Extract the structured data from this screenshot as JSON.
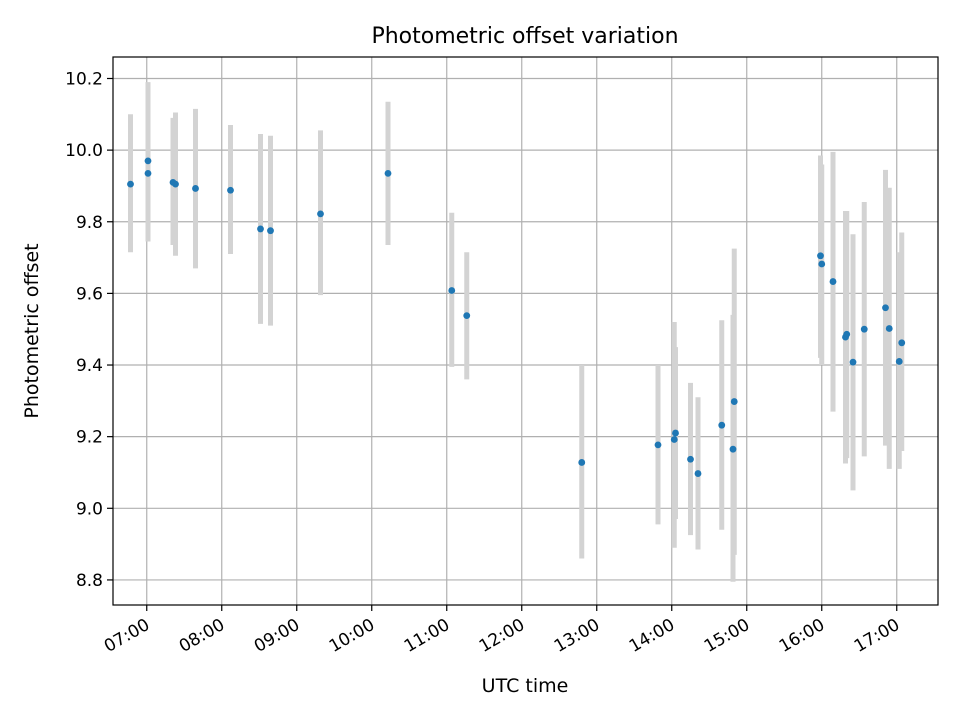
{
  "colors": {
    "point": "#1f77b4",
    "errorbar": "#d3d3d3",
    "grid": "#b0b0b0",
    "axes": "#000000",
    "background": "#ffffff"
  },
  "chart_data": {
    "type": "scatter",
    "title": "Photometric offset variation",
    "xlabel": "UTC time",
    "ylabel": "Photometric offset",
    "xlim": [
      "06:33",
      "17:33"
    ],
    "ylim": [
      8.73,
      10.26
    ],
    "grid": true,
    "x_ticks": [
      "07:00",
      "08:00",
      "09:00",
      "10:00",
      "11:00",
      "12:00",
      "13:00",
      "14:00",
      "15:00",
      "16:00",
      "17:00"
    ],
    "y_ticks": [
      "8.8",
      "9.0",
      "9.2",
      "9.4",
      "9.6",
      "9.8",
      "10.0",
      "10.2"
    ],
    "series": [
      {
        "points": [
          {
            "x": "06:47",
            "y": 9.905,
            "err_low": 9.715,
            "err_high": 10.1
          },
          {
            "x": "07:01",
            "y": 9.97,
            "err_low": 9.745,
            "err_high": 10.19
          },
          {
            "x": "07:01",
            "y": 9.935,
            "err_low": 9.75,
            "err_high": 10.125
          },
          {
            "x": "07:21",
            "y": 9.91,
            "err_low": 9.735,
            "err_high": 10.09
          },
          {
            "x": "07:23",
            "y": 9.905,
            "err_low": 9.705,
            "err_high": 10.105
          },
          {
            "x": "07:39",
            "y": 9.893,
            "err_low": 9.67,
            "err_high": 10.115
          },
          {
            "x": "08:07",
            "y": 9.888,
            "err_low": 9.71,
            "err_high": 10.07
          },
          {
            "x": "08:31",
            "y": 9.78,
            "err_low": 9.515,
            "err_high": 10.045
          },
          {
            "x": "08:39",
            "y": 9.775,
            "err_low": 9.51,
            "err_high": 10.04
          },
          {
            "x": "09:19",
            "y": 9.822,
            "err_low": 9.595,
            "err_high": 10.055
          },
          {
            "x": "10:13",
            "y": 9.935,
            "err_low": 9.735,
            "err_high": 10.135
          },
          {
            "x": "11:04",
            "y": 9.608,
            "err_low": 9.395,
            "err_high": 9.825
          },
          {
            "x": "11:16",
            "y": 9.538,
            "err_low": 9.36,
            "err_high": 9.715
          },
          {
            "x": "12:48",
            "y": 9.128,
            "err_low": 8.86,
            "err_high": 9.4
          },
          {
            "x": "13:49",
            "y": 9.177,
            "err_low": 8.955,
            "err_high": 9.4
          },
          {
            "x": "14:02",
            "y": 9.192,
            "err_low": 8.89,
            "err_high": 9.52
          },
          {
            "x": "14:03",
            "y": 9.21,
            "err_low": 8.97,
            "err_high": 9.45
          },
          {
            "x": "14:15",
            "y": 9.137,
            "err_low": 8.925,
            "err_high": 9.35
          },
          {
            "x": "14:21",
            "y": 9.097,
            "err_low": 8.885,
            "err_high": 9.31
          },
          {
            "x": "14:40",
            "y": 9.232,
            "err_low": 8.94,
            "err_high": 9.525
          },
          {
            "x": "14:49",
            "y": 9.165,
            "err_low": 8.795,
            "err_high": 9.54
          },
          {
            "x": "14:50",
            "y": 9.298,
            "err_low": 8.87,
            "err_high": 9.725
          },
          {
            "x": "15:59",
            "y": 9.705,
            "err_low": 9.42,
            "err_high": 9.985
          },
          {
            "x": "16:00",
            "y": 9.682,
            "err_low": 9.4,
            "err_high": 9.96
          },
          {
            "x": "16:09",
            "y": 9.633,
            "err_low": 9.27,
            "err_high": 9.995
          },
          {
            "x": "16:19",
            "y": 9.478,
            "err_low": 9.125,
            "err_high": 9.83
          },
          {
            "x": "16:20",
            "y": 9.486,
            "err_low": 9.14,
            "err_high": 9.83
          },
          {
            "x": "16:25",
            "y": 9.408,
            "err_low": 9.05,
            "err_high": 9.765
          },
          {
            "x": "16:34",
            "y": 9.5,
            "err_low": 9.145,
            "err_high": 9.855
          },
          {
            "x": "16:51",
            "y": 9.56,
            "err_low": 9.175,
            "err_high": 9.945
          },
          {
            "x": "16:54",
            "y": 9.502,
            "err_low": 9.11,
            "err_high": 9.895
          },
          {
            "x": "17:02",
            "y": 9.41,
            "err_low": 9.11,
            "err_high": 9.715
          },
          {
            "x": "17:04",
            "y": 9.462,
            "err_low": 9.16,
            "err_high": 9.77
          }
        ]
      }
    ]
  }
}
